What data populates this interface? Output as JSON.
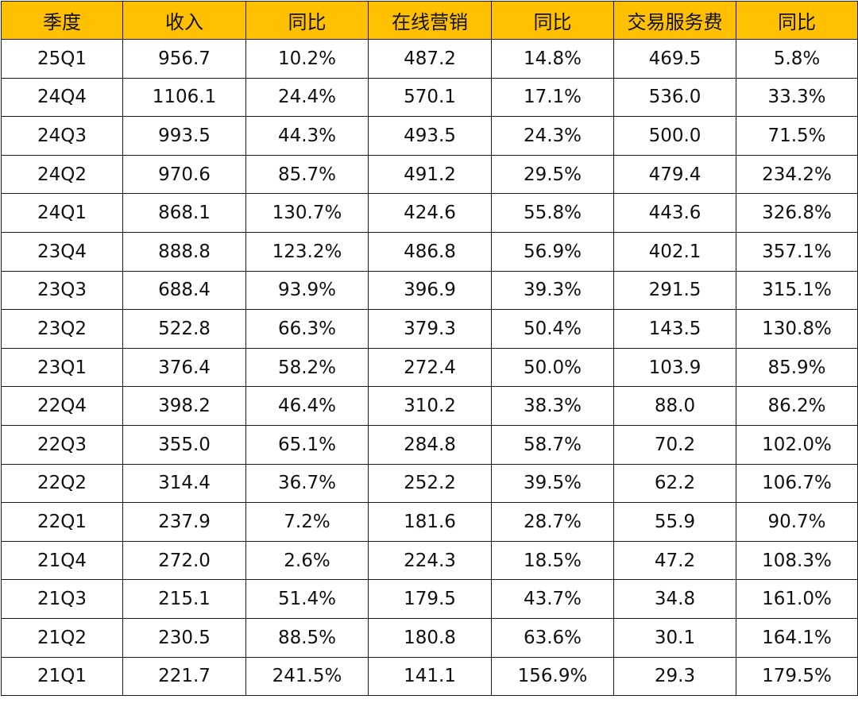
{
  "colors": {
    "header_background": "#ffc000",
    "border": "#1a1a1a",
    "text": "#111111"
  },
  "table": {
    "headers": [
      "季度",
      "收入",
      "同比",
      "在线营销",
      "同比",
      "交易服务费",
      "同比"
    ],
    "rows": [
      [
        "25Q1",
        "956.7",
        "10.2%",
        "487.2",
        "14.8%",
        "469.5",
        "5.8%"
      ],
      [
        "24Q4",
        "1106.1",
        "24.4%",
        "570.1",
        "17.1%",
        "536.0",
        "33.3%"
      ],
      [
        "24Q3",
        "993.5",
        "44.3%",
        "493.5",
        "24.3%",
        "500.0",
        "71.5%"
      ],
      [
        "24Q2",
        "970.6",
        "85.7%",
        "491.2",
        "29.5%",
        "479.4",
        "234.2%"
      ],
      [
        "24Q1",
        "868.1",
        "130.7%",
        "424.6",
        "55.8%",
        "443.6",
        "326.8%"
      ],
      [
        "23Q4",
        "888.8",
        "123.2%",
        "486.8",
        "56.9%",
        "402.1",
        "357.1%"
      ],
      [
        "23Q3",
        "688.4",
        "93.9%",
        "396.9",
        "39.3%",
        "291.5",
        "315.1%"
      ],
      [
        "23Q2",
        "522.8",
        "66.3%",
        "379.3",
        "50.4%",
        "143.5",
        "130.8%"
      ],
      [
        "23Q1",
        "376.4",
        "58.2%",
        "272.4",
        "50.0%",
        "103.9",
        "85.9%"
      ],
      [
        "22Q4",
        "398.2",
        "46.4%",
        "310.2",
        "38.3%",
        "88.0",
        "86.2%"
      ],
      [
        "22Q3",
        "355.0",
        "65.1%",
        "284.8",
        "58.7%",
        "70.2",
        "102.0%"
      ],
      [
        "22Q2",
        "314.4",
        "36.7%",
        "252.2",
        "39.5%",
        "62.2",
        "106.7%"
      ],
      [
        "22Q1",
        "237.9",
        "7.2%",
        "181.6",
        "28.7%",
        "55.9",
        "90.7%"
      ],
      [
        "21Q4",
        "272.0",
        "2.6%",
        "224.3",
        "18.5%",
        "47.2",
        "108.3%"
      ],
      [
        "21Q3",
        "215.1",
        "51.4%",
        "179.5",
        "43.7%",
        "34.8",
        "161.0%"
      ],
      [
        "21Q2",
        "230.5",
        "88.5%",
        "180.8",
        "63.6%",
        "30.1",
        "164.1%"
      ],
      [
        "21Q1",
        "221.7",
        "241.5%",
        "141.1",
        "156.9%",
        "29.3",
        "179.5%"
      ]
    ]
  }
}
